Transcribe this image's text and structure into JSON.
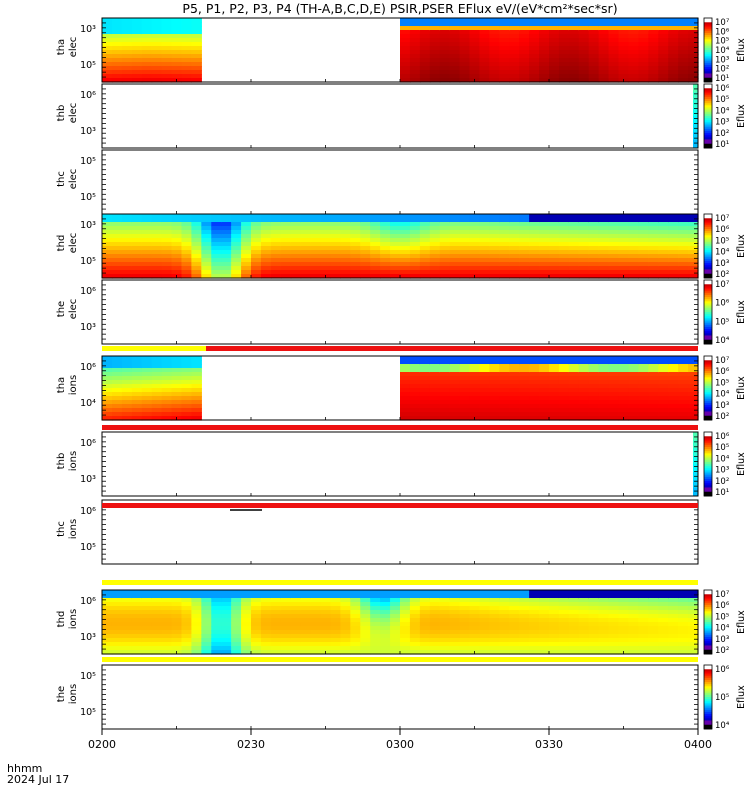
{
  "title": "P5, P1, P2, P3, P4 (TH-A,B,C,D,E) PSIR,PSER EFlux eV/(eV*cm²*sec*sr)",
  "footer": {
    "label": "hhmm",
    "date": "2024 Jul 17"
  },
  "colors": {
    "axis": "#000000",
    "background": "#ffffff",
    "marker_red": "#ee1111",
    "marker_yellow": "#ffff00"
  },
  "chart_data": {
    "type": "heatmap",
    "x_ticks": [
      "0200",
      "0230",
      "0300",
      "0330",
      "0400"
    ],
    "x_range": [
      "02:00",
      "04:00"
    ],
    "colorbar_label": "Eflux",
    "panels": [
      {
        "name": "tha elec",
        "ylabel": [
          "tha",
          "elec"
        ],
        "y_ticks": [
          "10³",
          "10⁵"
        ],
        "has_data": true,
        "pattern": "ab_elec",
        "colorbar": [
          "10¹",
          "10²",
          "10³",
          "10⁴",
          "10⁵",
          "10⁶",
          "10⁷"
        ]
      },
      {
        "name": "thb elec",
        "ylabel": [
          "thb",
          "elec"
        ],
        "y_ticks": [
          "10⁶",
          "10³"
        ],
        "has_data": false,
        "pattern": "edge",
        "colorbar": [
          "10¹",
          "10²",
          "10³",
          "10⁴",
          "10⁵",
          "10⁶"
        ]
      },
      {
        "name": "thc elec",
        "ylabel": [
          "thc",
          "elec"
        ],
        "y_ticks": [
          "10⁵",
          "10⁵"
        ],
        "has_data": false,
        "pattern": "none",
        "colorbar": []
      },
      {
        "name": "thd elec",
        "ylabel": [
          "thd",
          "elec"
        ],
        "y_ticks": [
          "10³",
          "10⁵"
        ],
        "has_data": true,
        "pattern": "d_elec",
        "colorbar": [
          "10²",
          "10³",
          "10⁴",
          "10⁵",
          "10⁶",
          "10⁷"
        ]
      },
      {
        "name": "the elec",
        "ylabel": [
          "the",
          "elec"
        ],
        "y_ticks": [
          "10⁶",
          "10³"
        ],
        "has_data": false,
        "pattern": "none",
        "colorbar": [
          "10⁴",
          "10⁵",
          "10⁶",
          "10⁷"
        ]
      },
      {
        "name": "tha ions",
        "ylabel": [
          "tha",
          "ions"
        ],
        "y_ticks": [
          "10⁶",
          "10⁴"
        ],
        "has_data": true,
        "pattern": "ab_ions",
        "colorbar": [
          "10²",
          "10³",
          "10⁴",
          "10⁵",
          "10⁶",
          "10⁷"
        ]
      },
      {
        "name": "thb ions",
        "ylabel": [
          "thb",
          "ions"
        ],
        "y_ticks": [
          "10⁶",
          "10³"
        ],
        "has_data": false,
        "pattern": "edge",
        "colorbar": [
          "10¹",
          "10²",
          "10³",
          "10⁴",
          "10⁵",
          "10⁶"
        ]
      },
      {
        "name": "thc ions",
        "ylabel": [
          "thc",
          "ions"
        ],
        "y_ticks": [
          "10⁶",
          "10⁵"
        ],
        "has_data": false,
        "pattern": "none",
        "colorbar": []
      },
      {
        "name": "thd ions",
        "ylabel": [
          "thd",
          "ions"
        ],
        "y_ticks": [
          "10⁶",
          "10³"
        ],
        "has_data": true,
        "pattern": "d_ions",
        "colorbar": [
          "10²",
          "10³",
          "10⁴",
          "10⁵",
          "10⁶",
          "10⁷"
        ]
      },
      {
        "name": "the ions",
        "ylabel": [
          "the",
          "ions"
        ],
        "y_ticks": [
          "10⁵",
          "10⁵"
        ],
        "has_data": false,
        "pattern": "none",
        "colorbar": [
          "10⁴",
          "10⁵",
          "10⁶"
        ]
      }
    ]
  }
}
